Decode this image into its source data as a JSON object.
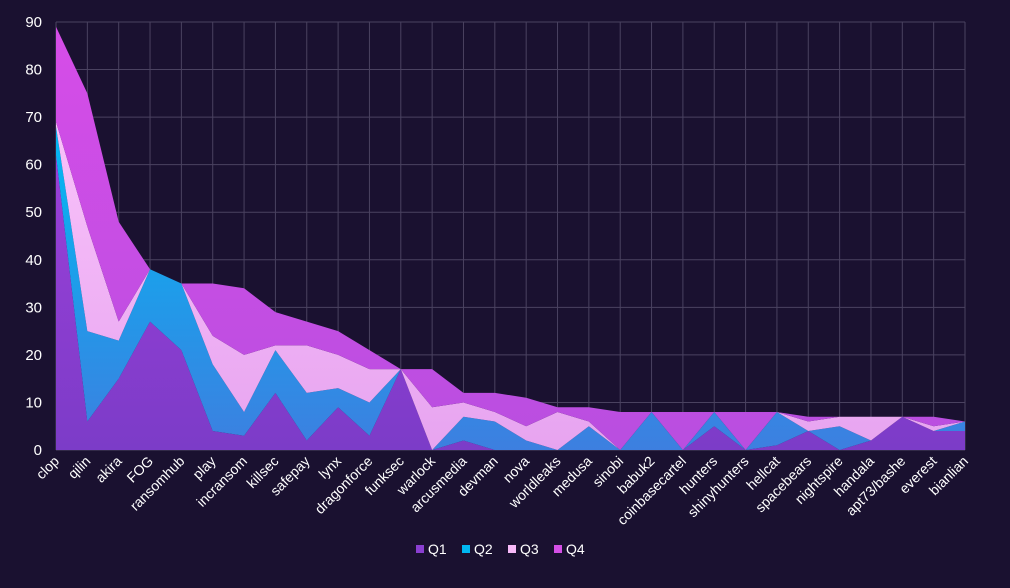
{
  "chart_data": {
    "type": "area",
    "stacked": true,
    "categories": [
      "clop",
      "qilin",
      "akira",
      "FOG",
      "ransomhub",
      "play",
      "incransom",
      "killsec",
      "safepay",
      "lynx",
      "dragonforce",
      "funksec",
      "warlock",
      "arcusmedia",
      "devman",
      "nova",
      "worldleaks",
      "medusa",
      "sinobi",
      "babuk2",
      "coinbasecartel",
      "hunters",
      "shinyhunters",
      "hellcat",
      "spacebears",
      "nightspire",
      "handala",
      "apt73/bashe",
      "everest",
      "bianlian"
    ],
    "series": [
      {
        "name": "Q1",
        "color": "#8a3fd1",
        "values": [
          62,
          6,
          15,
          27,
          21,
          4,
          3,
          12,
          2,
          9,
          3,
          17,
          0,
          2,
          0,
          0,
          0,
          0,
          0,
          0,
          0,
          5,
          0,
          1,
          4,
          0,
          2,
          7,
          4,
          4
        ]
      },
      {
        "name": "Q2",
        "color": "#00b7f1",
        "values": [
          6,
          19,
          8,
          11,
          14,
          14,
          5,
          9,
          10,
          4,
          7,
          0,
          0,
          5,
          6,
          2,
          0,
          5,
          0,
          8,
          0,
          3,
          0,
          7,
          0,
          5,
          0,
          0,
          0,
          2
        ]
      },
      {
        "name": "Q3",
        "color": "#f8baf9",
        "values": [
          1,
          22,
          4,
          0,
          0,
          6,
          12,
          1,
          10,
          7,
          7,
          0,
          9,
          3,
          2,
          3,
          8,
          1,
          0,
          0,
          0,
          0,
          0,
          0,
          2,
          2,
          5,
          0,
          1,
          0
        ]
      },
      {
        "name": "Q4",
        "color": "#d44fe6",
        "values": [
          20,
          28,
          21,
          0,
          0,
          11,
          14,
          7,
          5,
          5,
          4,
          0,
          8,
          2,
          4,
          6,
          1,
          3,
          8,
          0,
          8,
          0,
          8,
          0,
          1,
          0,
          0,
          0,
          2,
          0
        ]
      }
    ],
    "y_ticks": [
      "0",
      "10",
      "20",
      "30",
      "40",
      "50",
      "60",
      "70",
      "80",
      "90"
    ],
    "ylim": [
      0,
      90
    ],
    "grid": true,
    "legend_position": "bottom"
  }
}
